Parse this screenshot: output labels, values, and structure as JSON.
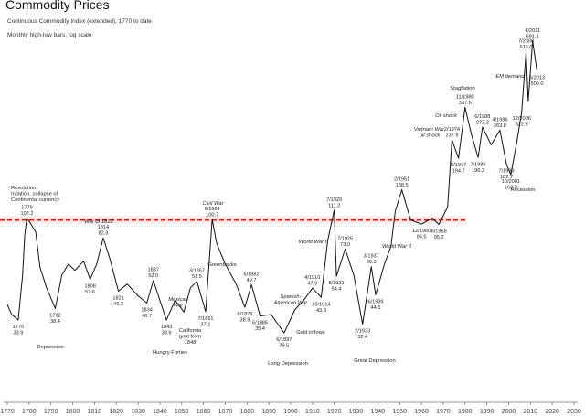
{
  "chart_data": {
    "type": "line",
    "title": "Commodity Prices",
    "subtitle": "Continuous Commodity Index (extended), 1770 to date",
    "note": "Monthly high-low bars, log scale",
    "log_scale": true,
    "xlim": [
      1770,
      2030
    ],
    "xticks": [
      1770,
      1780,
      1790,
      1800,
      1810,
      1820,
      1830,
      1840,
      1850,
      1860,
      1870,
      1880,
      1890,
      1900,
      1910,
      1920,
      1930,
      1940,
      1950,
      1960,
      1970,
      1980,
      1990,
      2000,
      2010,
      2020,
      2030
    ],
    "ylim": [
      24,
      800
    ],
    "reference_line": 100,
    "reference_color": "#d62020",
    "series": [
      {
        "color": "#111111",
        "x": [
          1770,
          1772,
          1775,
          1777,
          1778,
          1779,
          1781,
          1783,
          1785,
          1788,
          1792,
          1795,
          1798,
          1801,
          1805,
          1808,
          1811,
          1814,
          1817,
          1821,
          1825,
          1830,
          1834,
          1837,
          1840,
          1843,
          1847,
          1851,
          1854,
          1857,
          1861,
          1864,
          1866,
          1870,
          1875,
          1879,
          1882,
          1886,
          1891,
          1897,
          1902,
          1906,
          1910,
          1914,
          1917,
          1920,
          1921,
          1925,
          1929,
          1933,
          1937,
          1939,
          1943,
          1946,
          1948,
          1951,
          1955,
          1960,
          1965,
          1968,
          1972,
          1974,
          1977,
          1980,
          1983,
          1986,
          1988,
          1992,
          1996,
          1999,
          2001,
          2004,
          2006,
          2008,
          2009,
          2011,
          2013
        ],
        "values": [
          40,
          36,
          33.9,
          55,
          85,
          102.2,
          95,
          88,
          60,
          48,
          38.4,
          55,
          62,
          58,
          64,
          52.6,
          62,
          82.3,
          66,
          46.3,
          50,
          44,
          40.7,
          52,
          42,
          33.9,
          42,
          37,
          48,
          51.5,
          37.1,
          100.7,
          78,
          62,
          50,
          38.9,
          49.7,
          35.4,
          36,
          29.5,
          38,
          42,
          47.9,
          43.3,
          80,
          111.2,
          54.4,
          73,
          55,
          32.4,
          60.3,
          44.5,
          62,
          75,
          110,
          138.5,
          100,
          95.5,
          102,
          95.2,
          115,
          237.9,
          194.7,
          337.6,
          250,
          196.2,
          272.2,
          225,
          263.8,
          182.7,
          162.9,
          240,
          322.5,
          615,
          360,
          691.1,
          500
        ],
        "date_labels": [
          null,
          null,
          "1775",
          null,
          null,
          "1779",
          null,
          null,
          null,
          null,
          "1792",
          null,
          null,
          null,
          null,
          "1808",
          null,
          "1814",
          null,
          "1821",
          null,
          null,
          "1834",
          "1837",
          null,
          "1843",
          null,
          null,
          null,
          "3/1857",
          "7/1861",
          "6/1864",
          null,
          null,
          null,
          "6/1879",
          "6/1882",
          "6/1886",
          null,
          "6/1897",
          null,
          null,
          "4/1910",
          "10/1914",
          null,
          "7/1920",
          "8/1921",
          "7/1925",
          null,
          "2/1933",
          "3/1937",
          "6/1939",
          null,
          null,
          null,
          "2/1951",
          null,
          "12/1960",
          null,
          "6/1968",
          null,
          "2/1974",
          "6/1977",
          "11/1980",
          null,
          "7/1986",
          "6/1988",
          null,
          "4/1996",
          "7/1999",
          "10/2001",
          null,
          "12/2006",
          "7/2008",
          null,
          "4/2011",
          "6/2013"
        ],
        "value_labels": [
          null,
          null,
          "33.9",
          null,
          null,
          "102.2",
          null,
          null,
          null,
          null,
          "38.4",
          null,
          null,
          null,
          null,
          "52.6",
          null,
          "82.3",
          null,
          "46.3",
          null,
          null,
          "40.7",
          "52.0",
          null,
          "33.9",
          null,
          null,
          null,
          "51.5",
          "37.1",
          "100.7",
          null,
          null,
          null,
          "38.9",
          "49.7",
          "35.4",
          null,
          "29.5",
          null,
          null,
          "47.9",
          "43.3",
          null,
          "111.2",
          "54.4",
          "73.0",
          null,
          "32.4",
          "60.3",
          "44.5",
          null,
          null,
          null,
          "138.5",
          null,
          "95.5",
          null,
          "95.2",
          null,
          "237.9",
          "194.7",
          "337.6",
          null,
          "196.2",
          "272.2",
          null,
          "263.8",
          "182.7",
          "162.9",
          null,
          "322.5",
          "615.0",
          null,
          "691.1",
          "500.0"
        ]
      }
    ],
    "annotations": [
      {
        "lines": [
          "Revolution:",
          "Inflation, collapse of",
          "Continental currency"
        ],
        "italic": false
      },
      {
        "lines": [
          "War of 1812"
        ],
        "italic": true
      },
      {
        "lines": [
          "Depression"
        ],
        "italic": false
      },
      {
        "lines": [
          "Greenbacks"
        ],
        "italic": false
      },
      {
        "lines": [
          "Civil War"
        ],
        "italic": true
      },
      {
        "lines": [
          "Mexican",
          "War"
        ],
        "italic": true
      },
      {
        "lines": [
          "California",
          "gold from",
          "1848"
        ],
        "italic": false
      },
      {
        "lines": [
          "Hungry Forties"
        ],
        "italic": false
      },
      {
        "lines": [
          "Spanish-",
          "American War"
        ],
        "italic": true
      },
      {
        "lines": [
          "Gold inflows"
        ],
        "italic": false
      },
      {
        "lines": [
          "Long Depression"
        ],
        "italic": false
      },
      {
        "lines": [
          "World War I"
        ],
        "italic": true
      },
      {
        "lines": [
          "World War II"
        ],
        "italic": true
      },
      {
        "lines": [
          "Great Depression"
        ],
        "italic": false
      },
      {
        "lines": [
          "Vietnam War,",
          "oil shock"
        ],
        "italic": true
      },
      {
        "lines": [
          "Oil shock"
        ],
        "italic": true
      },
      {
        "lines": [
          "Stagflation"
        ],
        "italic": false
      },
      {
        "lines": [
          "EM demand"
        ],
        "italic": true
      },
      {
        "lines": [
          "Recession"
        ],
        "italic": false
      }
    ]
  }
}
